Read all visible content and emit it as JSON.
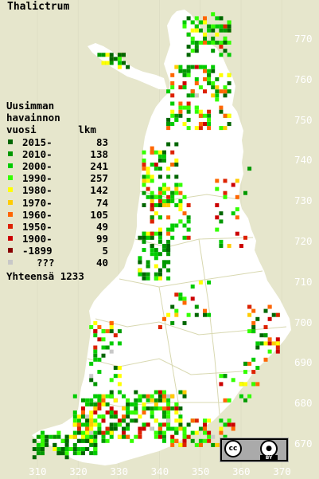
{
  "title": "Thalictrum",
  "legend": {
    "header": "Uusimman\nhavainnon\nvuosi       lkm",
    "rows": [
      {
        "label": "2015-",
        "count": "83",
        "color": "#006600"
      },
      {
        "label": "2010-",
        "count": "138",
        "color": "#009900"
      },
      {
        "label": "2000-",
        "count": "241",
        "color": "#00cc00"
      },
      {
        "label": "1990-",
        "count": "257",
        "color": "#33ff00"
      },
      {
        "label": "1980-",
        "count": "142",
        "color": "#ffff00"
      },
      {
        "label": "1970-",
        "count": "74",
        "color": "#ffcc00"
      },
      {
        "label": "1960-",
        "count": "105",
        "color": "#ff6600"
      },
      {
        "label": "1950-",
        "count": "49",
        "color": "#dd2200"
      },
      {
        "label": "1900-",
        "count": "99",
        "color": "#cc0000"
      },
      {
        "label": "-1899",
        "count": "5",
        "color": "#880000"
      },
      {
        "label": "???",
        "count": "40",
        "color": "#c8c8c8"
      }
    ],
    "total_label": "Yhteensä",
    "total_count": "1233"
  },
  "axes": {
    "y_labels": [
      "770",
      "760",
      "750",
      "740",
      "730",
      "720",
      "710",
      "700",
      "690",
      "680",
      "670"
    ],
    "x_labels": [
      "310",
      "320",
      "330",
      "340",
      "350",
      "360",
      "370"
    ]
  },
  "license_badge": {
    "cc": "cc",
    "by": "BY",
    "person_icon": "person-icon"
  },
  "colors": {
    "background": "#e6e6cc",
    "land": "#ffffff",
    "grid": "#dadac0"
  }
}
